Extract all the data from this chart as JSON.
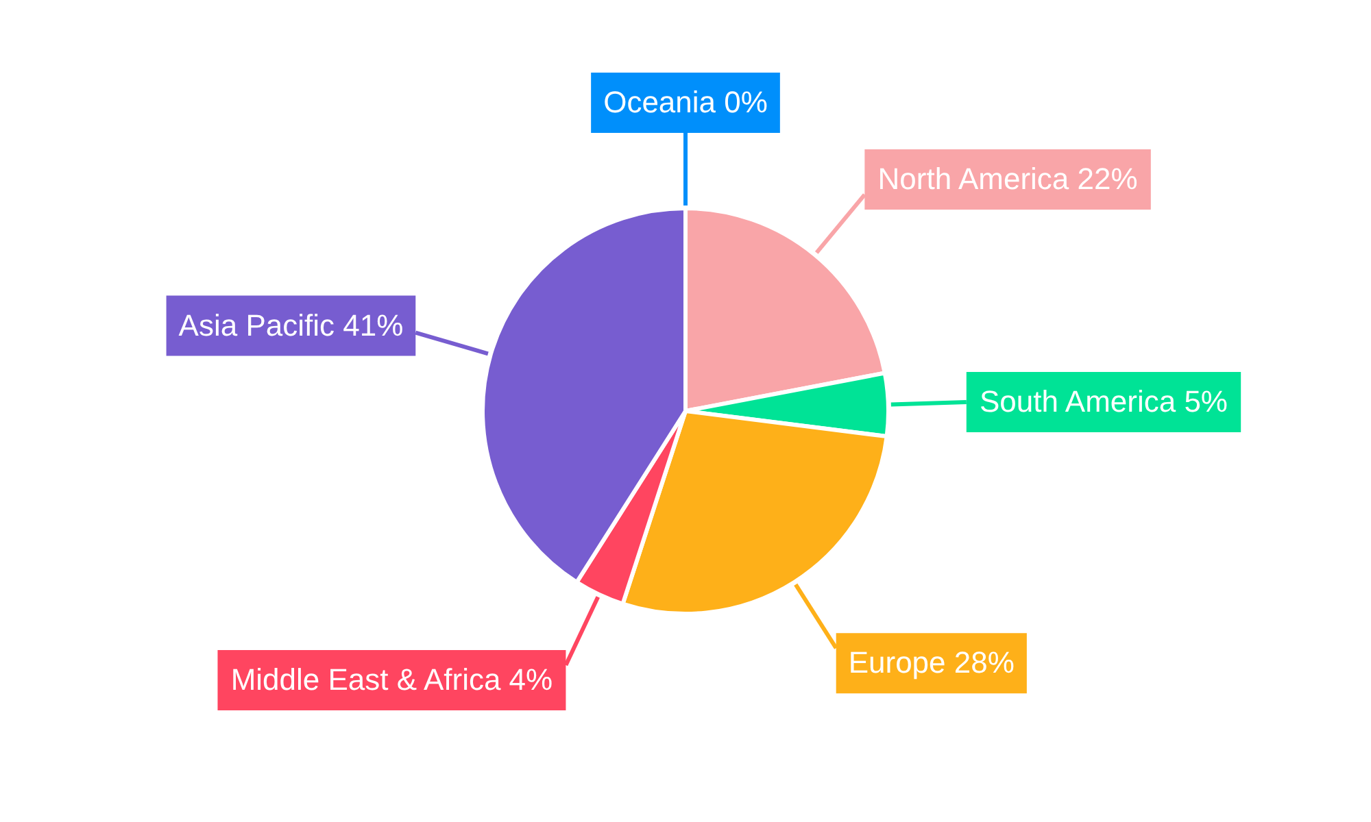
{
  "chart_data": {
    "type": "pie",
    "categories": [
      "North America",
      "South America",
      "Europe",
      "Middle East & Africa",
      "Asia Pacific",
      "Oceania"
    ],
    "values": [
      22,
      5,
      28,
      4,
      41,
      0
    ],
    "value_labels": [
      "22%",
      "5%",
      "28%",
      "4%",
      "41%",
      "0%"
    ],
    "colors": [
      "#f9a5a8",
      "#00e396",
      "#feb019",
      "#ff4560",
      "#775dd0",
      "#008ffb"
    ]
  }
}
